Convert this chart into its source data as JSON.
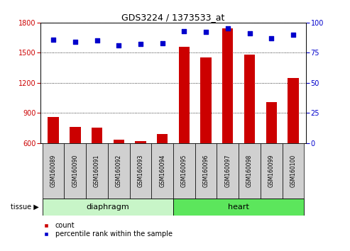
{
  "title": "GDS3224 / 1373533_at",
  "samples": [
    "GSM160089",
    "GSM160090",
    "GSM160091",
    "GSM160092",
    "GSM160093",
    "GSM160094",
    "GSM160095",
    "GSM160096",
    "GSM160097",
    "GSM160098",
    "GSM160099",
    "GSM160100"
  ],
  "counts": [
    862,
    762,
    757,
    634,
    618,
    690,
    1562,
    1453,
    1743,
    1483,
    1010,
    1248
  ],
  "percentile_ranks": [
    86,
    84,
    85,
    81,
    82,
    83,
    93,
    92,
    95,
    91,
    87,
    90
  ],
  "diaphragm_indices": [
    0,
    1,
    2,
    3,
    4,
    5
  ],
  "heart_indices": [
    6,
    7,
    8,
    9,
    10,
    11
  ],
  "ylim_left": [
    600,
    1800
  ],
  "ylim_right": [
    0,
    100
  ],
  "yticks_left": [
    600,
    900,
    1200,
    1500,
    1800
  ],
  "yticks_right": [
    0,
    25,
    50,
    75,
    100
  ],
  "bar_color": "#cc0000",
  "dot_color": "#0000cc",
  "bar_width": 0.5,
  "diaphragm_color": "#c8f5c8",
  "heart_color": "#5ce65c",
  "tissue_label": "tissue",
  "legend_count_label": "count",
  "legend_pct_label": "percentile rank within the sample",
  "title_fontsize": 9,
  "tick_fontsize": 7,
  "label_fontsize": 5.5,
  "tissue_fontsize": 8
}
